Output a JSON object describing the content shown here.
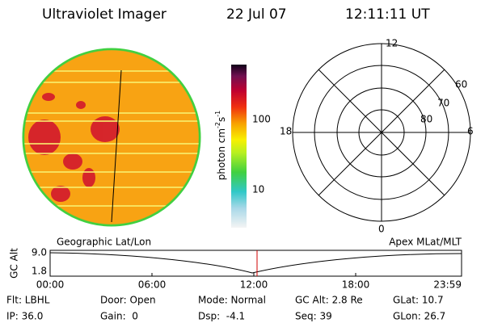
{
  "header": {
    "title": "Ultraviolet Imager",
    "date": "22 Jul 07",
    "time": "12:11:11 UT"
  },
  "colorbar": {
    "ticks": [
      "100",
      "10"
    ],
    "unit": {
      "base": "photon cm",
      "exp1": "-2",
      "mid": "s",
      "exp2": "-1"
    }
  },
  "polar": {
    "mlt_labels": [
      "12",
      "18",
      "6",
      "0"
    ],
    "lat_labels": [
      "60",
      "70",
      "80"
    ]
  },
  "timeline": {
    "left_title": "Geographic Lat/Lon",
    "right_title": "Apex MLat/MLT",
    "ylabel": "GC Alt",
    "yticks": [
      "9.0",
      "1.8"
    ],
    "xticks": [
      "00:00",
      "06:00",
      "12:00",
      "18:00",
      "23:59"
    ]
  },
  "footer": {
    "rows": [
      [
        "Flt: LBHL",
        "Door: Open",
        "Mode: Normal",
        "GC Alt: 2.8 Re",
        "GLat: 10.7"
      ],
      [
        "IP: 36.0",
        "Gain:  0",
        "Dsp:  -4.1",
        "Seq: 39",
        "GLon: 26.7"
      ]
    ]
  }
}
